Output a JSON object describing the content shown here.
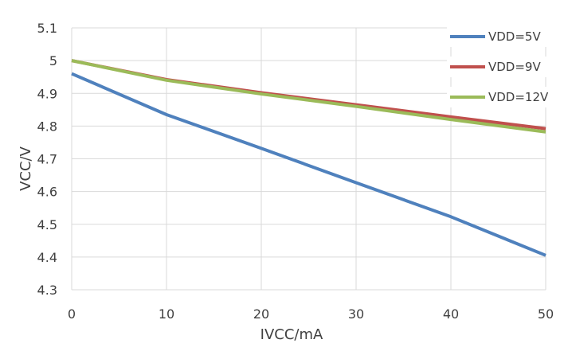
{
  "chart_data": {
    "type": "line",
    "title": "",
    "xlabel": "IVCC/mA",
    "ylabel": "VCC/V",
    "x": [
      0,
      10,
      20,
      30,
      40,
      50
    ],
    "xlim": [
      0,
      50
    ],
    "ylim": [
      4.3,
      5.1
    ],
    "xticks": [
      "0",
      "10",
      "20",
      "30",
      "40",
      "50"
    ],
    "yticks": [
      "4.3",
      "4.4",
      "4.5",
      "4.6",
      "4.7",
      "4.8",
      "4.9",
      "5",
      "5.1"
    ],
    "grid": true,
    "legend_position": "top-right",
    "series": [
      {
        "name": "VDD=5V",
        "color": "#4f81bd",
        "values": [
          4.96,
          4.835,
          4.732,
          4.627,
          4.523,
          4.405
        ]
      },
      {
        "name": "VDD=9V",
        "color": "#c0504d",
        "values": [
          5.0,
          4.942,
          4.902,
          4.865,
          4.828,
          4.792
        ]
      },
      {
        "name": "VDD=12V",
        "color": "#9bbb59",
        "values": [
          5.0,
          4.94,
          4.898,
          4.86,
          4.82,
          4.782
        ]
      }
    ]
  }
}
